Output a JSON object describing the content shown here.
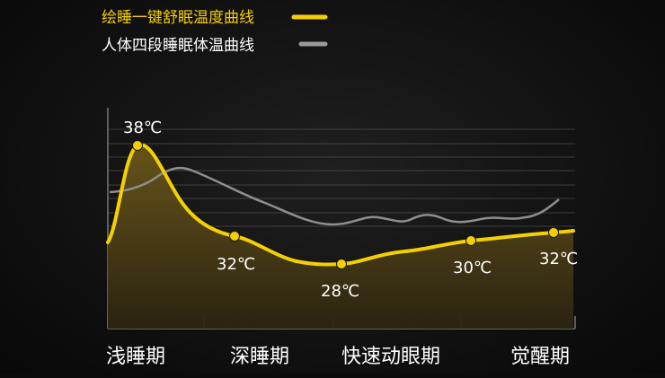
{
  "chart_data": {
    "type": "line",
    "legend": {
      "placement": "top-right",
      "items": [
        {
          "label": "绘睡一键舒眠温度曲线",
          "color": "#f5d000"
        },
        {
          "label": "人体四段睡眠体温曲线",
          "color": "#9a9a9a"
        }
      ]
    },
    "categories": [
      "浅睡期",
      "深睡期",
      "快速动眼期",
      "觉醒期"
    ],
    "series": [
      {
        "name": "绘睡一键舒眠温度曲线",
        "color": "#f5d000",
        "points": [
          {
            "label": "38℃",
            "value": 38
          },
          {
            "label": "32℃",
            "value": 32
          },
          {
            "label": "28℃",
            "value": 28
          },
          {
            "label": "30℃",
            "value": 30
          },
          {
            "label": "32℃",
            "value": 32
          }
        ]
      },
      {
        "name": "人体四段睡眠体温曲线",
        "color": "#9a9a9a"
      }
    ],
    "grid": true,
    "colors": {
      "yellow": "#f5d000",
      "gray": "#8e8e8e",
      "fill_top": "#5a4a12",
      "fill_bottom": "#2a2410",
      "text": "#ffffff"
    }
  }
}
